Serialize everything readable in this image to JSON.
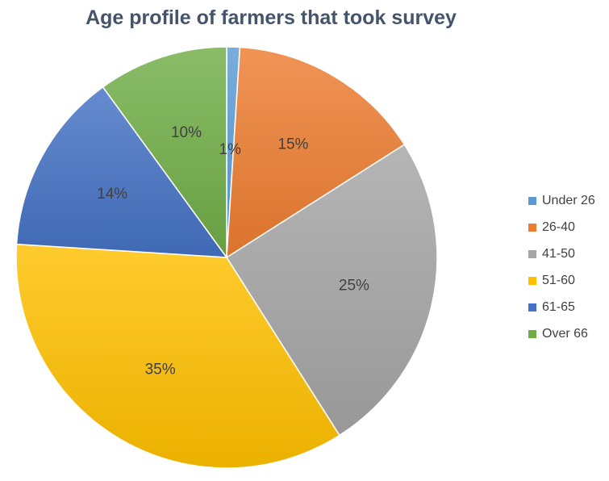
{
  "chart_data": {
    "type": "pie",
    "title": "Age profile of farmers that took survey",
    "categories": [
      "Under 26",
      "26-40",
      "41-50",
      "51-60",
      "61-65",
      "Over 66"
    ],
    "values": [
      1,
      15,
      25,
      35,
      14,
      10
    ],
    "labels": [
      "1%",
      "15%",
      "25%",
      "35%",
      "14%",
      "10%"
    ],
    "colors": [
      "#5b9bd5",
      "#ed7d31",
      "#a5a5a5",
      "#ffc000",
      "#4472c4",
      "#70ad47"
    ],
    "start_angle_deg": 0,
    "direction": "clockwise",
    "legend_position": "right"
  }
}
